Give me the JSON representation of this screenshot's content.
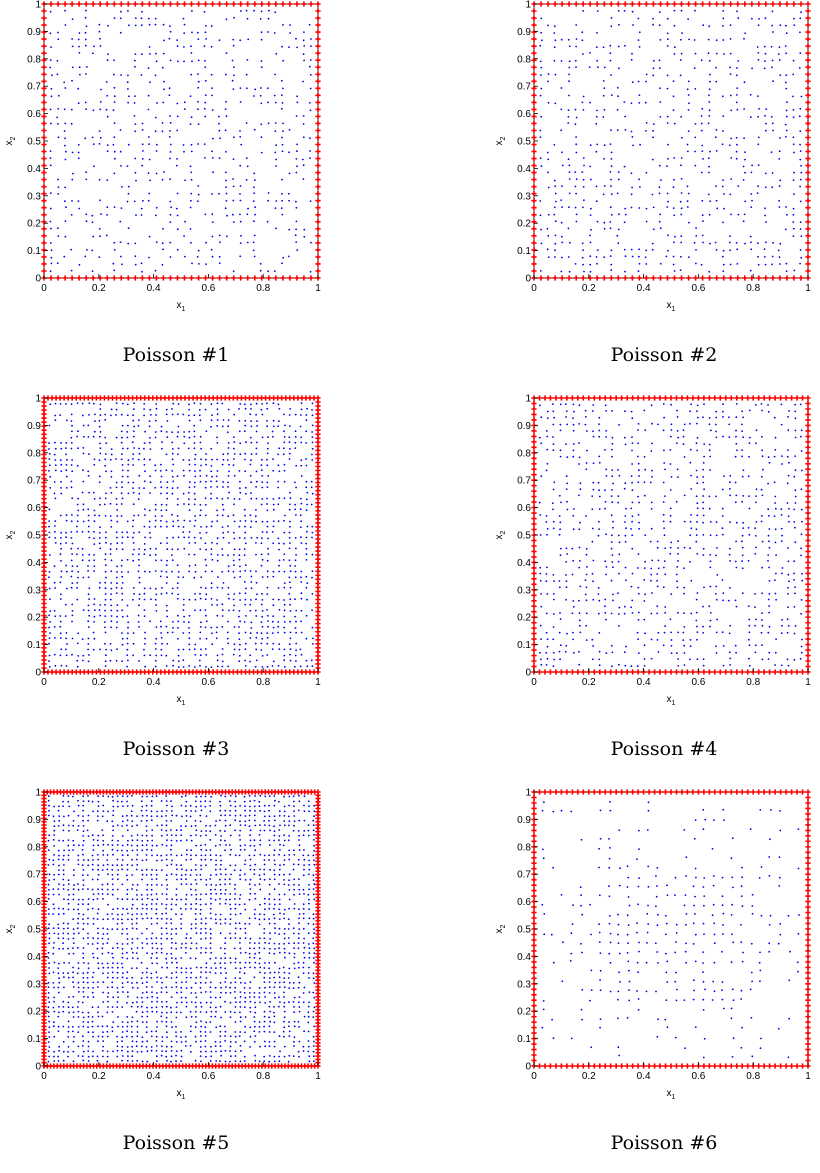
{
  "colors": {
    "interior": "#0000ee",
    "boundary": "#ff0000",
    "axes": "#000000"
  },
  "chart_data": [
    {
      "type": "scatter",
      "caption": "Poisson #1",
      "xlabel": "x",
      "xlabel_sub": "1",
      "ylabel": "x",
      "ylabel_sub": "2",
      "xlim": [
        0,
        1
      ],
      "ylim": [
        0,
        1
      ],
      "xticks": [
        "0",
        "0.2",
        "0.4",
        "0.6",
        "0.8",
        "1"
      ],
      "yticks": [
        "0",
        "0.1",
        "0.2",
        "0.3",
        "0.4",
        "0.5",
        "0.6",
        "0.7",
        "0.8",
        "0.9",
        "1"
      ],
      "series": [
        {
          "marker": "dot",
          "color": "#0000ee",
          "grid_spacing": 0.0256,
          "density": 0.42,
          "seed": 11
        },
        {
          "marker": "plus",
          "color": "#ff0000",
          "boundary_spacing": 0.0256
        }
      ]
    },
    {
      "type": "scatter",
      "caption": "Poisson #2",
      "xlabel": "x",
      "xlabel_sub": "1",
      "ylabel": "x",
      "ylabel_sub": "2",
      "xlim": [
        0,
        1
      ],
      "ylim": [
        0,
        1
      ],
      "xticks": [
        "0",
        "0.2",
        "0.4",
        "0.6",
        "0.8",
        "1"
      ],
      "yticks": [
        "0",
        "0.1",
        "0.2",
        "0.3",
        "0.4",
        "0.5",
        "0.6",
        "0.7",
        "0.8",
        "0.9",
        "1"
      ],
      "series": [
        {
          "marker": "dot",
          "color": "#0000ee",
          "grid_spacing": 0.0256,
          "density": 0.45,
          "seed": 23
        },
        {
          "marker": "plus",
          "color": "#ff0000",
          "boundary_spacing": 0.0256
        }
      ]
    },
    {
      "type": "scatter",
      "caption": "Poisson #3",
      "xlabel": "x",
      "xlabel_sub": "1",
      "ylabel": "x",
      "ylabel_sub": "2",
      "xlim": [
        0,
        1
      ],
      "ylim": [
        0,
        1
      ],
      "xticks": [
        "0",
        "0.2",
        "0.4",
        "0.6",
        "0.8",
        "1"
      ],
      "yticks": [
        "0",
        "0.1",
        "0.2",
        "0.3",
        "0.4",
        "0.5",
        "0.6",
        "0.7",
        "0.8",
        "0.9",
        "1"
      ],
      "series": [
        {
          "marker": "dot",
          "color": "#0000ee",
          "grid_spacing": 0.0204,
          "density": 0.62,
          "seed": 37
        },
        {
          "marker": "plus",
          "color": "#ff0000",
          "boundary_spacing": 0.0147
        }
      ]
    },
    {
      "type": "scatter",
      "caption": "Poisson #4",
      "xlabel": "x",
      "xlabel_sub": "1",
      "ylabel": "x",
      "ylabel_sub": "2",
      "xlim": [
        0,
        1
      ],
      "ylim": [
        0,
        1
      ],
      "xticks": [
        "0",
        "0.2",
        "0.4",
        "0.6",
        "0.8",
        "1"
      ],
      "yticks": [
        "0",
        "0.1",
        "0.2",
        "0.3",
        "0.4",
        "0.5",
        "0.6",
        "0.7",
        "0.8",
        "0.9",
        "1"
      ],
      "series": [
        {
          "marker": "dot",
          "color": "#0000ee",
          "grid_spacing": 0.0238,
          "density": 0.48,
          "seed": 41
        },
        {
          "marker": "plus",
          "color": "#ff0000",
          "boundary_spacing": 0.02
        }
      ]
    },
    {
      "type": "scatter",
      "caption": "Poisson #5",
      "xlabel": "x",
      "xlabel_sub": "1",
      "ylabel": "x",
      "ylabel_sub": "2",
      "xlim": [
        0,
        1
      ],
      "ylim": [
        0,
        1
      ],
      "xticks": [
        "0",
        "0.2",
        "0.4",
        "0.6",
        "0.8",
        "1"
      ],
      "yticks": [
        "0",
        "0.1",
        "0.2",
        "0.3",
        "0.4",
        "0.5",
        "0.6",
        "0.7",
        "0.8",
        "0.9",
        "1"
      ],
      "series": [
        {
          "marker": "dot",
          "color": "#0000ee",
          "grid_spacing": 0.0179,
          "density": 0.7,
          "seed": 53
        },
        {
          "marker": "plus",
          "color": "#ff0000",
          "boundary_spacing": 0.012
        }
      ]
    },
    {
      "type": "scatter",
      "caption": "Poisson #6",
      "xlabel": "x",
      "xlabel_sub": "1",
      "ylabel": "x",
      "ylabel_sub": "2",
      "xlim": [
        0,
        1
      ],
      "ylim": [
        0,
        1
      ],
      "xticks": [
        "0",
        "0.2",
        "0.4",
        "0.6",
        "0.8",
        "1"
      ],
      "yticks": [
        "0",
        "0.1",
        "0.2",
        "0.3",
        "0.4",
        "0.5",
        "0.6",
        "0.7",
        "0.8",
        "0.9",
        "1"
      ],
      "series": [
        {
          "marker": "dot",
          "color": "#0000ee",
          "grid_spacing": 0.0345,
          "density": 0.45,
          "seed": 67,
          "cluster_center": [
            0.5,
            0.45
          ]
        },
        {
          "marker": "plus",
          "color": "#ff0000",
          "boundary_spacing": 0.02
        }
      ]
    }
  ]
}
